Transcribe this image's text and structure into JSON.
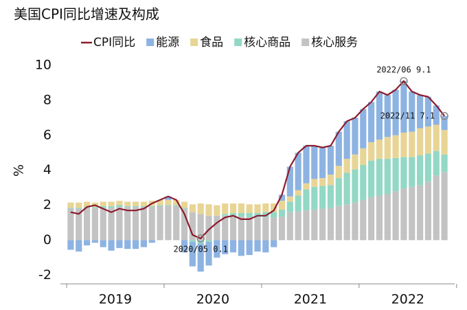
{
  "chart_data": {
    "type": "stacked-bar-line",
    "title": "美国CPI同比增速及构成",
    "y_label": "%",
    "categories": [
      null,
      null,
      null,
      null,
      null,
      null,
      null,
      null,
      null,
      null,
      null,
      null,
      null,
      null,
      null,
      null,
      null,
      null,
      null,
      null,
      null,
      null,
      null,
      null,
      null,
      null,
      null,
      null,
      null,
      null,
      null,
      null,
      null,
      null,
      null,
      null,
      null,
      null,
      null,
      null,
      null,
      null,
      null,
      null,
      null,
      null,
      null
    ],
    "year_labels": [
      "2019",
      "2020",
      "2021",
      "2022"
    ],
    "ylim": [
      -2.5,
      10
    ],
    "yticks": [
      -2,
      0,
      2,
      4,
      6,
      8,
      10
    ],
    "series": [
      {
        "name": "CPI同比",
        "kind": "line",
        "color": "#8b1c2e",
        "values": [
          1.6,
          1.5,
          1.9,
          2.0,
          1.8,
          1.6,
          1.8,
          1.7,
          1.7,
          1.8,
          2.1,
          2.3,
          2.5,
          2.3,
          1.5,
          0.3,
          0.1,
          0.6,
          1.0,
          1.3,
          1.4,
          1.2,
          1.2,
          1.4,
          1.4,
          1.7,
          2.6,
          4.2,
          5.0,
          5.4,
          5.4,
          5.3,
          5.4,
          6.2,
          6.8,
          7.0,
          7.5,
          7.9,
          8.5,
          8.3,
          8.6,
          9.1,
          8.5,
          8.3,
          8.2,
          7.7,
          7.1
        ]
      },
      {
        "name": "能源",
        "kind": "bar",
        "color": "#8db3e2",
        "values": [
          -0.55,
          -0.65,
          -0.3,
          -0.15,
          -0.4,
          -0.6,
          -0.45,
          -0.5,
          -0.5,
          -0.4,
          -0.15,
          0.0,
          0.2,
          0.0,
          -0.7,
          -1.4,
          -1.6,
          -1.35,
          -1.0,
          -0.8,
          -0.7,
          -0.9,
          -0.85,
          -0.65,
          -0.7,
          -0.4,
          0.35,
          1.7,
          2.15,
          2.15,
          1.9,
          1.75,
          1.65,
          1.95,
          2.15,
          2.1,
          2.25,
          2.3,
          2.75,
          2.4,
          2.6,
          2.95,
          2.3,
          1.9,
          1.7,
          1.1,
          0.8
        ]
      },
      {
        "name": "食品",
        "kind": "bar",
        "color": "#e8d595",
        "values": [
          0.3,
          0.3,
          0.3,
          0.25,
          0.25,
          0.25,
          0.25,
          0.25,
          0.25,
          0.25,
          0.3,
          0.3,
          0.3,
          0.3,
          0.35,
          0.45,
          0.6,
          0.65,
          0.6,
          0.6,
          0.55,
          0.55,
          0.5,
          0.5,
          0.5,
          0.5,
          0.5,
          0.3,
          0.3,
          0.35,
          0.45,
          0.45,
          0.6,
          0.7,
          0.8,
          0.85,
          0.95,
          1.05,
          1.1,
          1.25,
          1.3,
          1.4,
          1.45,
          1.55,
          1.55,
          1.5,
          1.4
        ]
      },
      {
        "name": "核心商品",
        "kind": "bar",
        "color": "#92d8c4",
        "values": [
          0.05,
          0.05,
          0.05,
          0.05,
          0.1,
          0.1,
          0.1,
          0.05,
          0.05,
          0.05,
          0.05,
          0.05,
          0.05,
          0.05,
          0.05,
          -0.1,
          -0.2,
          -0.1,
          0.0,
          0.1,
          0.2,
          0.2,
          0.25,
          0.25,
          0.3,
          0.3,
          0.4,
          0.6,
          0.9,
          1.2,
          1.3,
          1.3,
          1.3,
          1.6,
          1.8,
          1.9,
          2.0,
          2.1,
          2.1,
          2.0,
          1.9,
          1.8,
          1.7,
          1.7,
          1.6,
          1.4,
          1.0
        ]
      },
      {
        "name": "核心服务",
        "kind": "bar",
        "color": "#c3c3c3",
        "values": [
          1.8,
          1.8,
          1.85,
          1.85,
          1.85,
          1.85,
          1.9,
          1.9,
          1.9,
          1.9,
          1.9,
          1.95,
          1.95,
          1.95,
          1.8,
          1.6,
          1.5,
          1.4,
          1.4,
          1.4,
          1.35,
          1.35,
          1.3,
          1.3,
          1.3,
          1.3,
          1.35,
          1.6,
          1.65,
          1.7,
          1.75,
          1.8,
          1.85,
          1.95,
          2.05,
          2.15,
          2.3,
          2.45,
          2.55,
          2.65,
          2.8,
          2.95,
          3.05,
          3.15,
          3.35,
          3.7,
          3.9
        ]
      }
    ],
    "annotations": [
      "2022/06 9.1",
      "2022/11 7.1",
      "2020/05 0.1"
    ]
  }
}
